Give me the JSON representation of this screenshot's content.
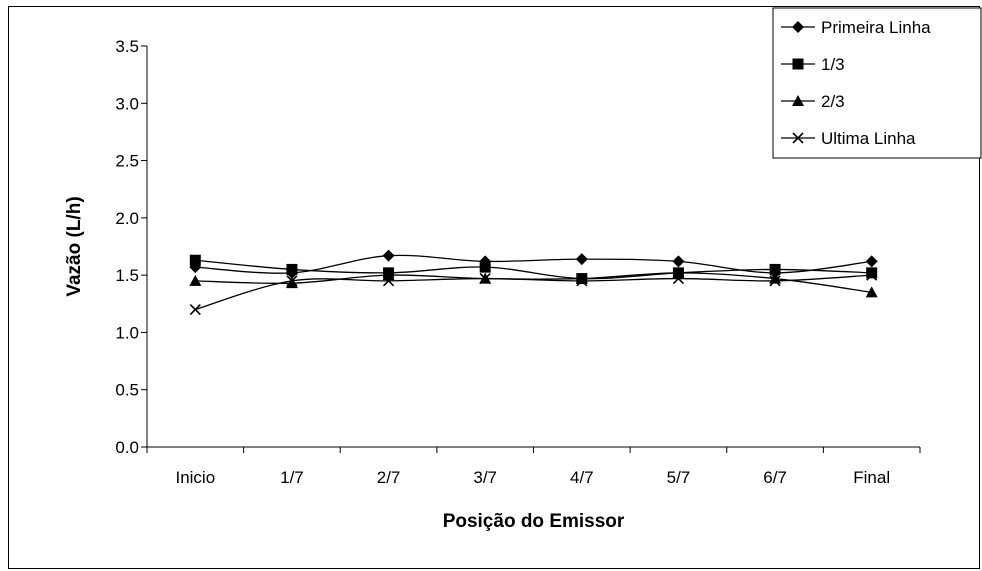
{
  "chart_data": {
    "type": "line",
    "title": "",
    "xlabel": "Posição do Emissor",
    "ylabel": "Vazão (L/h)",
    "categories": [
      "Inicio",
      "1/7",
      "2/7",
      "3/7",
      "4/7",
      "5/7",
      "6/7",
      "Final"
    ],
    "yticks": [
      "0.0",
      "0.5",
      "1.0",
      "1.5",
      "2.0",
      "2.5",
      "3.0",
      "3.5"
    ],
    "ylim": [
      0,
      3.5
    ],
    "grid": false,
    "legend_position": "top-right",
    "series": [
      {
        "name": "Primeira Linha",
        "marker": "diamond",
        "values": [
          1.57,
          1.52,
          1.67,
          1.62,
          1.64,
          1.62,
          1.52,
          1.62
        ]
      },
      {
        "name": "1/3",
        "marker": "square",
        "values": [
          1.63,
          1.55,
          1.52,
          1.57,
          1.47,
          1.52,
          1.55,
          1.52
        ]
      },
      {
        "name": "2/3",
        "marker": "triangle",
        "values": [
          1.45,
          1.43,
          1.5,
          1.47,
          1.47,
          1.52,
          1.47,
          1.35
        ]
      },
      {
        "name": "Ultima Linha",
        "marker": "x",
        "values": [
          1.2,
          1.45,
          1.45,
          1.47,
          1.45,
          1.47,
          1.45,
          1.5
        ]
      }
    ],
    "colors": {
      "line": "#000000",
      "background": "#ffffff"
    }
  }
}
